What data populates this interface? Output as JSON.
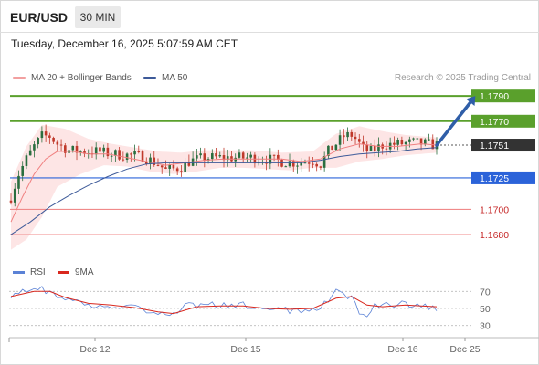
{
  "header": {
    "symbol": "EUR/USD",
    "timeframe": "30 MIN",
    "datetime": "Tuesday, December 16, 2025 5:07:59 AM CET"
  },
  "legend": {
    "ma20_label": "MA 20 + Bollinger Bands",
    "ma50_label": "MA 50",
    "credit": "Research © 2025 Trading Central"
  },
  "rsi_legend": {
    "rsi_label": "RSI",
    "ma_label": "9MA"
  },
  "colors": {
    "ma20": "#f08080",
    "ma50": "#3d5a99",
    "bands": "#fde0e0",
    "bull": "#2a6e3f",
    "bear": "#c0392b",
    "resistance": "#5aa02c",
    "support_blue": "#2b63d9",
    "support_red": "#f08a8a",
    "arrow": "#2f5ea8",
    "current": "#333333",
    "rsi": "#5b82d6",
    "rsi_ma": "#d9281e"
  },
  "chart_data": [
    {
      "type": "candlestick",
      "title": "EUR/USD 30 MIN",
      "xlabel": "",
      "ylabel": "",
      "x_tick_labels": [
        "Dec 12",
        "Dec 15",
        "Dec 16",
        "Dec 25"
      ],
      "ylim": [
        1.1667,
        1.1801
      ],
      "current_price": "1.1751",
      "levels": [
        {
          "label": "1.1790",
          "value": 1.179,
          "kind": "resistance"
        },
        {
          "label": "1.1770",
          "value": 1.177,
          "kind": "resistance"
        },
        {
          "label": "1.1751",
          "value": 1.1751,
          "kind": "current"
        },
        {
          "label": "1.1725",
          "value": 1.1725,
          "kind": "pivot"
        },
        {
          "label": "1.1700",
          "value": 1.17,
          "kind": "support"
        },
        {
          "label": "1.1680",
          "value": 1.168,
          "kind": "support"
        }
      ],
      "close_path": [
        [
          0,
          1.171
        ],
        [
          2,
          1.1728
        ],
        [
          4,
          1.174
        ],
        [
          6,
          1.175
        ],
        [
          8,
          1.1758
        ],
        [
          10,
          1.1758
        ],
        [
          12,
          1.1752
        ],
        [
          15,
          1.1747
        ],
        [
          18,
          1.1746
        ],
        [
          22,
          1.1746
        ],
        [
          26,
          1.1744
        ],
        [
          30,
          1.1743
        ],
        [
          34,
          1.1742
        ],
        [
          38,
          1.1736
        ],
        [
          40,
          1.1731
        ],
        [
          42,
          1.1732
        ],
        [
          44,
          1.1734
        ],
        [
          46,
          1.1738
        ],
        [
          50,
          1.1741
        ],
        [
          54,
          1.1741
        ],
        [
          58,
          1.1741
        ],
        [
          62,
          1.1741
        ],
        [
          66,
          1.174
        ],
        [
          70,
          1.1738
        ],
        [
          74,
          1.1737
        ],
        [
          78,
          1.1739
        ],
        [
          80,
          1.1736
        ],
        [
          82,
          1.1746
        ],
        [
          84,
          1.1752
        ],
        [
          86,
          1.1758
        ],
        [
          88,
          1.1759
        ],
        [
          89,
          1.1756
        ],
        [
          91,
          1.1748
        ],
        [
          93,
          1.1746
        ],
        [
          96,
          1.1751
        ],
        [
          100,
          1.1752
        ],
        [
          104,
          1.1753
        ],
        [
          107,
          1.1752
        ],
        [
          110,
          1.1751
        ]
      ],
      "ma20_path": [
        [
          0,
          1.169
        ],
        [
          3,
          1.171
        ],
        [
          6,
          1.1728
        ],
        [
          9,
          1.174
        ],
        [
          12,
          1.1746
        ],
        [
          16,
          1.1746
        ],
        [
          20,
          1.1744
        ],
        [
          25,
          1.1744
        ],
        [
          30,
          1.1741
        ],
        [
          35,
          1.1738
        ],
        [
          40,
          1.1735
        ],
        [
          45,
          1.1737
        ],
        [
          50,
          1.1739
        ],
        [
          55,
          1.174
        ],
        [
          60,
          1.174
        ],
        [
          65,
          1.174
        ],
        [
          70,
          1.174
        ],
        [
          75,
          1.1738
        ],
        [
          80,
          1.174
        ],
        [
          85,
          1.1748
        ],
        [
          90,
          1.1752
        ],
        [
          95,
          1.175
        ],
        [
          100,
          1.175
        ],
        [
          106,
          1.1752
        ],
        [
          110,
          1.1751
        ]
      ],
      "ma50_path": [
        [
          0,
          1.168
        ],
        [
          5,
          1.169
        ],
        [
          10,
          1.1702
        ],
        [
          15,
          1.1711
        ],
        [
          20,
          1.1719
        ],
        [
          25,
          1.1726
        ],
        [
          30,
          1.1732
        ],
        [
          35,
          1.1736
        ],
        [
          40,
          1.1737
        ],
        [
          45,
          1.1737
        ],
        [
          50,
          1.1737
        ],
        [
          55,
          1.1737
        ],
        [
          60,
          1.1737
        ],
        [
          65,
          1.1737
        ],
        [
          70,
          1.1737
        ],
        [
          75,
          1.1737
        ],
        [
          80,
          1.1739
        ],
        [
          85,
          1.1742
        ],
        [
          90,
          1.1744
        ],
        [
          95,
          1.1745
        ],
        [
          100,
          1.1746
        ],
        [
          105,
          1.1748
        ],
        [
          110,
          1.1749
        ]
      ],
      "bb_upper": [
        [
          0,
          1.1722
        ],
        [
          4,
          1.175
        ],
        [
          8,
          1.1767
        ],
        [
          14,
          1.1764
        ],
        [
          20,
          1.1756
        ],
        [
          26,
          1.1752
        ],
        [
          32,
          1.1749
        ],
        [
          38,
          1.1746
        ],
        [
          44,
          1.1745
        ],
        [
          50,
          1.1747
        ],
        [
          56,
          1.1747
        ],
        [
          62,
          1.1747
        ],
        [
          70,
          1.1745
        ],
        [
          78,
          1.1746
        ],
        [
          84,
          1.176
        ],
        [
          90,
          1.1766
        ],
        [
          96,
          1.1762
        ],
        [
          102,
          1.1759
        ],
        [
          110,
          1.1757
        ]
      ],
      "bb_lower": [
        [
          0,
          1.1668
        ],
        [
          4,
          1.1676
        ],
        [
          8,
          1.1694
        ],
        [
          12,
          1.1718
        ],
        [
          18,
          1.1728
        ],
        [
          24,
          1.1735
        ],
        [
          30,
          1.1734
        ],
        [
          36,
          1.173
        ],
        [
          42,
          1.1728
        ],
        [
          48,
          1.173
        ],
        [
          54,
          1.1733
        ],
        [
          60,
          1.1733
        ],
        [
          66,
          1.1732
        ],
        [
          72,
          1.1731
        ],
        [
          78,
          1.1733
        ],
        [
          84,
          1.1733
        ],
        [
          90,
          1.1738
        ],
        [
          96,
          1.174
        ],
        [
          102,
          1.1743
        ],
        [
          110,
          1.1745
        ]
      ],
      "forecast_arrow": {
        "from": [
          110,
          1.1751
        ],
        "to": [
          120,
          1.179
        ]
      }
    },
    {
      "type": "line",
      "title": "RSI",
      "ylim": [
        20,
        80
      ],
      "y_ticks": [
        30,
        50,
        70
      ],
      "series": [
        {
          "name": "RSI",
          "points": [
            [
              0,
              66
            ],
            [
              4,
              70
            ],
            [
              8,
              72
            ],
            [
              12,
              66
            ],
            [
              16,
              58
            ],
            [
              20,
              54
            ],
            [
              24,
              55
            ],
            [
              28,
              52
            ],
            [
              32,
              51
            ],
            [
              36,
              48
            ],
            [
              40,
              42
            ],
            [
              44,
              50
            ],
            [
              46,
              58
            ],
            [
              48,
              52
            ],
            [
              52,
              56
            ],
            [
              56,
              52
            ],
            [
              60,
              54
            ],
            [
              64,
              50
            ],
            [
              68,
              50
            ],
            [
              72,
              48
            ],
            [
              76,
              46
            ],
            [
              80,
              52
            ],
            [
              82,
              60
            ],
            [
              84,
              70
            ],
            [
              86,
              66
            ],
            [
              88,
              62
            ],
            [
              90,
              46
            ],
            [
              92,
              44
            ],
            [
              94,
              54
            ],
            [
              98,
              55
            ],
            [
              102,
              56
            ],
            [
              106,
              52
            ],
            [
              110,
              50
            ]
          ]
        },
        {
          "name": "9MA",
          "points": [
            [
              0,
              64
            ],
            [
              6,
              70
            ],
            [
              10,
              70
            ],
            [
              14,
              63
            ],
            [
              20,
              56
            ],
            [
              26,
              54
            ],
            [
              32,
              51
            ],
            [
              38,
              46
            ],
            [
              42,
              44
            ],
            [
              48,
              52
            ],
            [
              54,
              53
            ],
            [
              60,
              53
            ],
            [
              66,
              50
            ],
            [
              72,
              49
            ],
            [
              78,
              50
            ],
            [
              84,
              62
            ],
            [
              88,
              64
            ],
            [
              92,
              54
            ],
            [
              96,
              52
            ],
            [
              102,
              54
            ],
            [
              106,
              53
            ],
            [
              110,
              52
            ]
          ]
        }
      ]
    }
  ]
}
